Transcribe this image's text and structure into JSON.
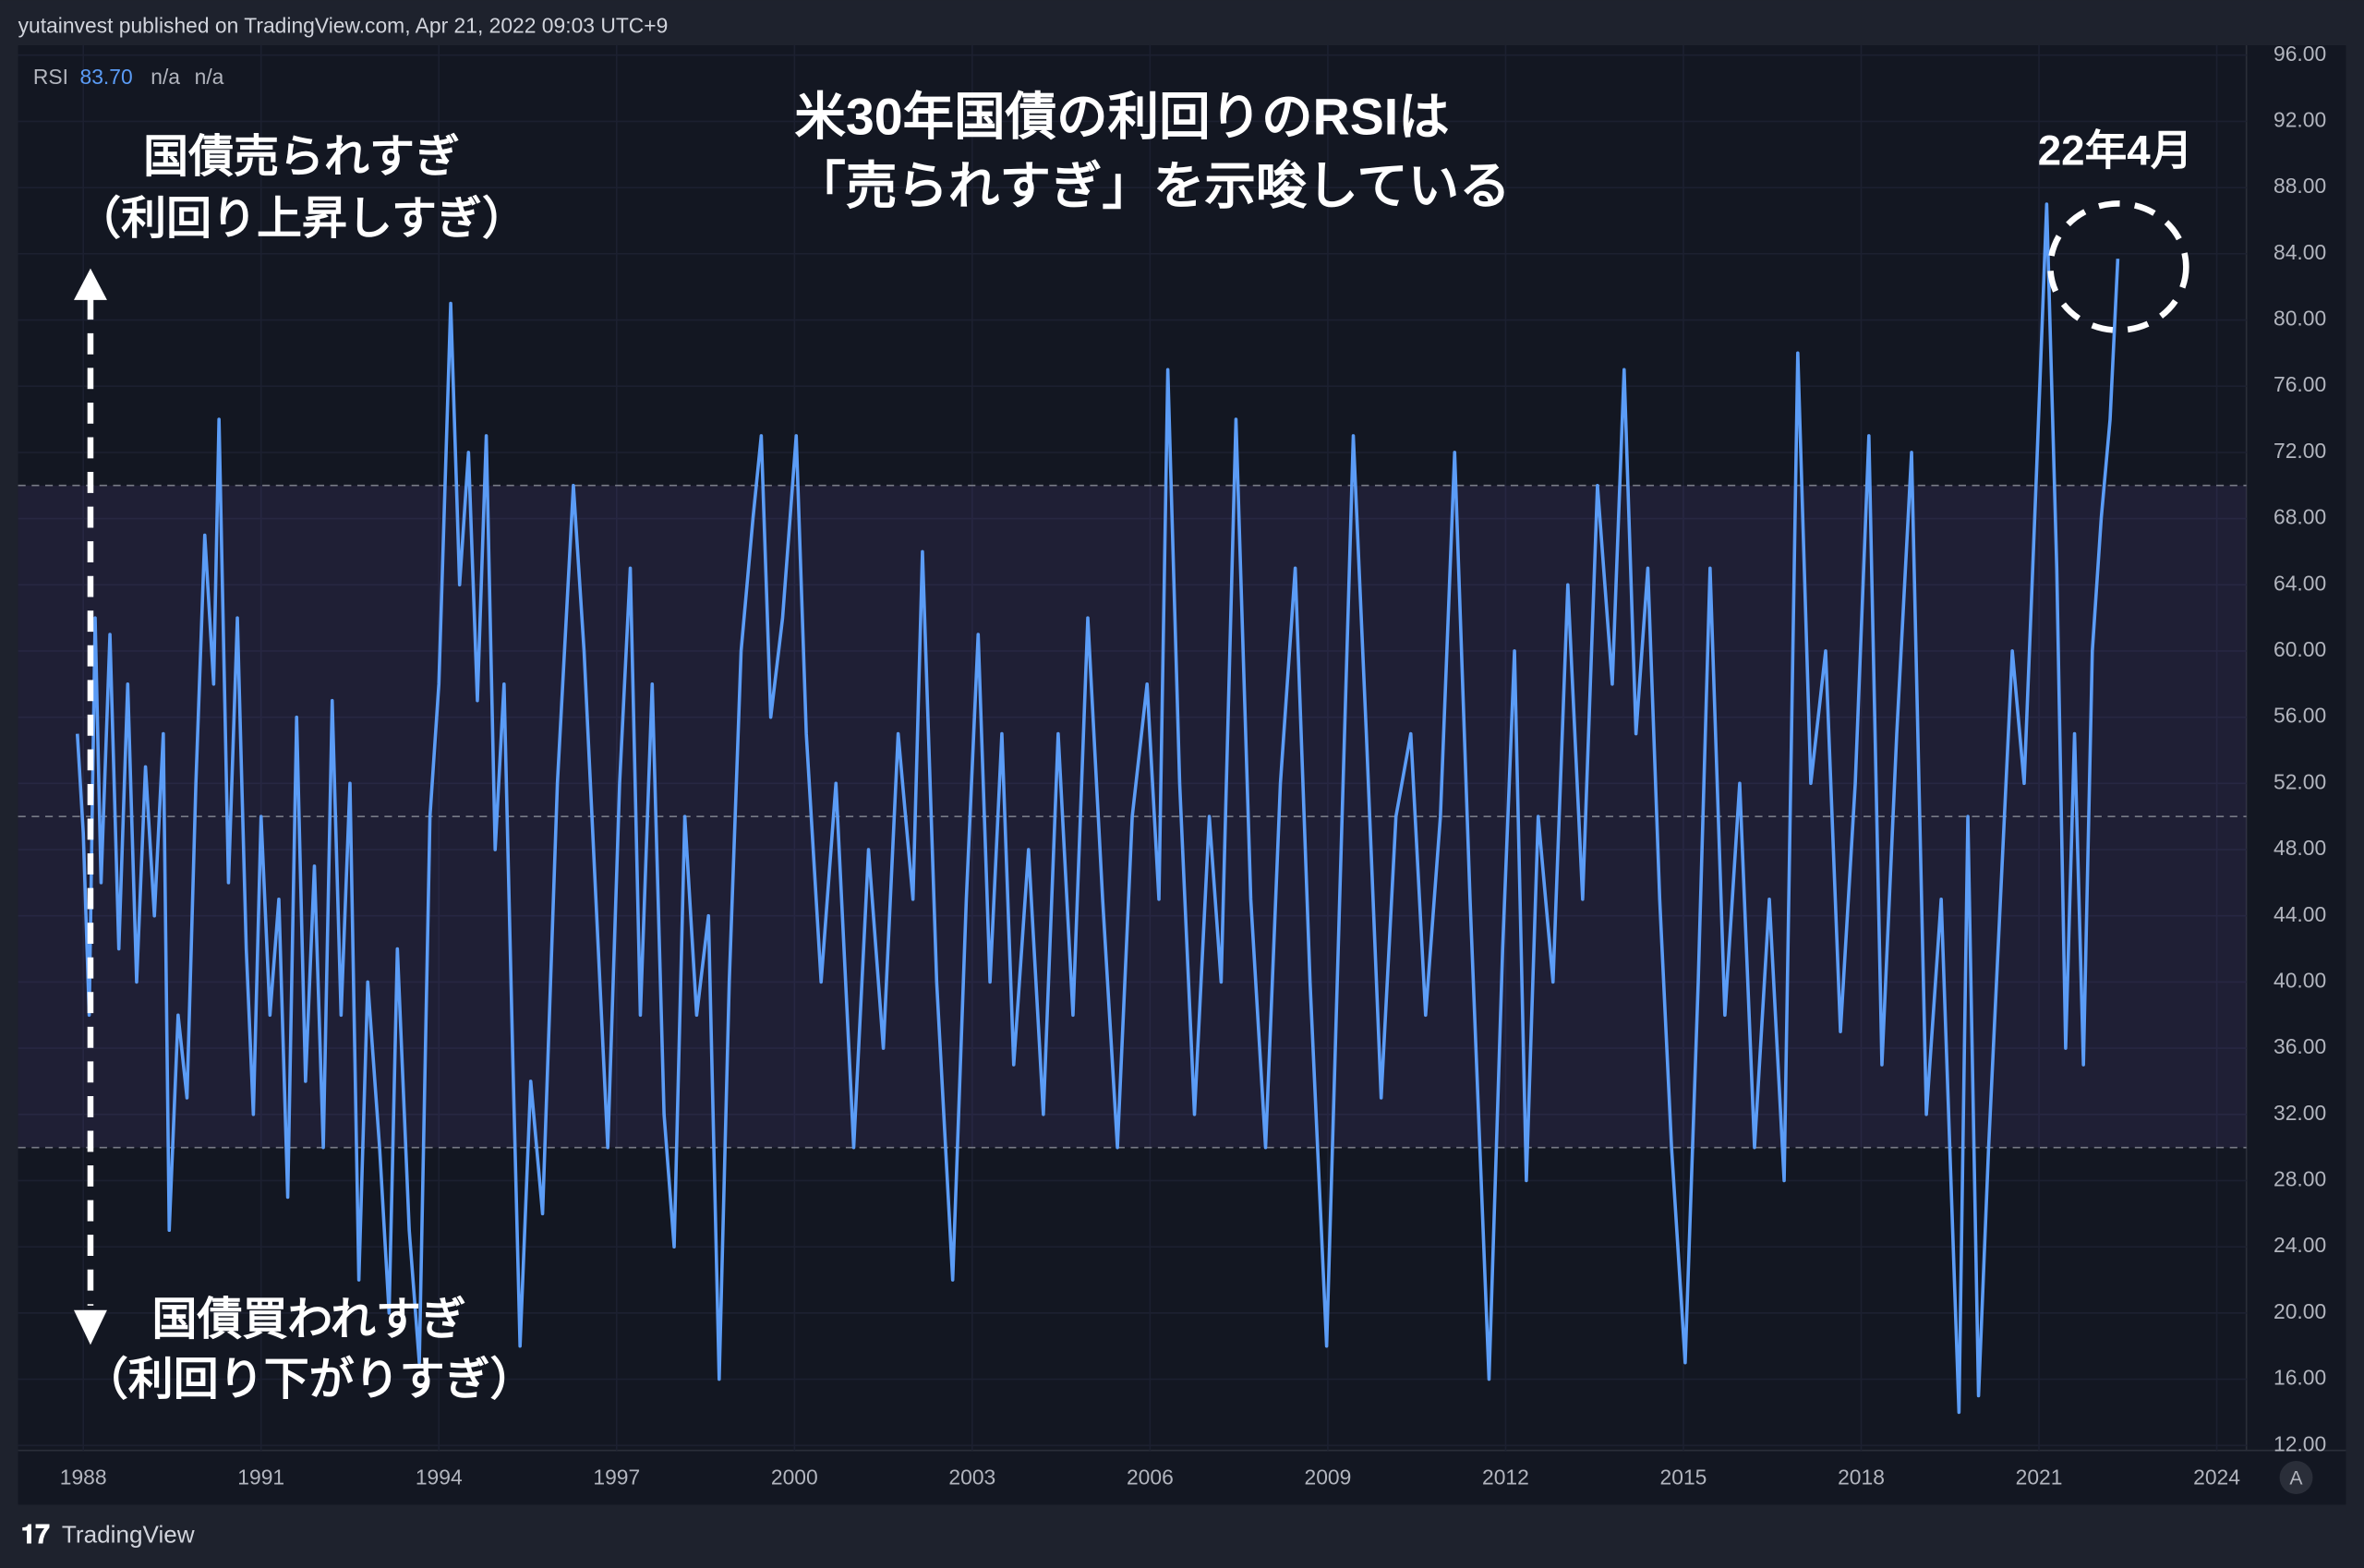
{
  "header": {
    "text": "yutainvest published on TradingView.com, Apr 21, 2022 09:03 UTC+9"
  },
  "footer": {
    "brand": "TradingView",
    "button": "A"
  },
  "chart_data": {
    "type": "line",
    "annotations": {
      "title_lines": [
        "米30年国債の利回りのRSIは",
        "「売られすぎ」を示唆している"
      ],
      "current": "22年4月",
      "top_lines": [
        "国債売られすぎ",
        "（利回り上昇しすぎ）"
      ],
      "bottom_lines": [
        "国債買われすぎ",
        "（利回り下がりすぎ）"
      ]
    },
    "legend_values": [
      "83.70",
      "n/a",
      "n/a"
    ],
    "x": [
      1987.9,
      1988.0,
      1988.1,
      1988.2,
      1988.3,
      1988.45,
      1988.6,
      1988.75,
      1988.9,
      1989.05,
      1989.2,
      1989.35,
      1989.45,
      1989.6,
      1989.75,
      1989.9,
      1990.05,
      1990.2,
      1990.29,
      1990.45,
      1990.6,
      1990.75,
      1990.87,
      1991.0,
      1991.15,
      1991.3,
      1991.45,
      1991.6,
      1991.75,
      1991.9,
      1992.05,
      1992.2,
      1992.35,
      1992.5,
      1992.65,
      1992.8,
      1993.0,
      1993.16,
      1993.3,
      1993.5,
      1993.67,
      1993.85,
      1994.0,
      1994.2,
      1994.35,
      1994.5,
      1994.65,
      1994.8,
      1994.95,
      1995.1,
      1995.25,
      1995.37,
      1995.55,
      1995.75,
      1996.0,
      1996.27,
      1996.45,
      1996.65,
      1996.85,
      1997.05,
      1997.23,
      1997.4,
      1997.6,
      1997.8,
      1997.97,
      1998.15,
      1998.35,
      1998.55,
      1998.73,
      1998.9,
      1999.1,
      1999.3,
      1999.44,
      1999.6,
      1999.8,
      2000.03,
      2000.2,
      2000.45,
      2000.7,
      2001.0,
      2001.25,
      2001.5,
      2001.75,
      2002.0,
      2002.16,
      2002.4,
      2002.67,
      2002.9,
      2003.1,
      2003.3,
      2003.5,
      2003.7,
      2003.95,
      2004.2,
      2004.45,
      2004.7,
      2004.95,
      2005.2,
      2005.45,
      2005.7,
      2005.95,
      2006.15,
      2006.3,
      2006.5,
      2006.75,
      2007.0,
      2007.2,
      2007.45,
      2007.7,
      2007.95,
      2008.2,
      2008.45,
      2008.7,
      2008.98,
      2009.2,
      2009.43,
      2009.65,
      2009.9,
      2010.15,
      2010.4,
      2010.65,
      2010.9,
      2011.14,
      2011.4,
      2011.72,
      2011.95,
      2012.15,
      2012.35,
      2012.55,
      2012.8,
      2013.05,
      2013.3,
      2013.55,
      2013.8,
      2014.0,
      2014.2,
      2014.4,
      2014.6,
      2014.8,
      2015.03,
      2015.25,
      2015.45,
      2015.7,
      2015.95,
      2016.2,
      2016.45,
      2016.7,
      2016.93,
      2017.15,
      2017.4,
      2017.65,
      2017.9,
      2018.13,
      2018.35,
      2018.6,
      2018.85,
      2019.1,
      2019.35,
      2019.65,
      2019.8,
      2019.98,
      2020.15,
      2020.35,
      2020.55,
      2020.75,
      2020.95,
      2021.13,
      2021.3,
      2021.45,
      2021.6,
      2021.75,
      2021.9,
      2022.05,
      2022.2,
      2022.33
    ],
    "series": [
      {
        "name": "RSI",
        "color": "#5b9cf6",
        "values": [
          55,
          49,
          38,
          62,
          46,
          61,
          42,
          58,
          40,
          53,
          44,
          55,
          25,
          38,
          33,
          52,
          67,
          58,
          74,
          46,
          62,
          42,
          32,
          50,
          38,
          45,
          27,
          56,
          34,
          47,
          30,
          57,
          38,
          52,
          22,
          40,
          30,
          20,
          42,
          25,
          17,
          50,
          58,
          81,
          64,
          72,
          57,
          73,
          48,
          58,
          35,
          18,
          34,
          26,
          52,
          70,
          60,
          45,
          30,
          52,
          65,
          38,
          58,
          32,
          24,
          50,
          38,
          44,
          16,
          40,
          60,
          68,
          73,
          56,
          62,
          73,
          55,
          40,
          52,
          30,
          48,
          36,
          55,
          45,
          66,
          40,
          22,
          45,
          61,
          40,
          55,
          35,
          48,
          32,
          55,
          38,
          62,
          45,
          30,
          50,
          58,
          45,
          77,
          52,
          32,
          50,
          40,
          74,
          45,
          30,
          52,
          65,
          40,
          18,
          45,
          73,
          55,
          33,
          50,
          55,
          38,
          50,
          72,
          45,
          16,
          42,
          60,
          28,
          50,
          40,
          64,
          45,
          70,
          58,
          77,
          55,
          65,
          45,
          30,
          17,
          40,
          65,
          38,
          52,
          30,
          45,
          28,
          78,
          52,
          60,
          37,
          52,
          73,
          35,
          55,
          72,
          32,
          45,
          14,
          50,
          15,
          30,
          45,
          60,
          52,
          70,
          87,
          65,
          36,
          55,
          35,
          60,
          68,
          74,
          83.7
        ]
      }
    ],
    "xlim": [
      1986.9,
      2024.5
    ],
    "ylim": [
      11.7,
      96.6
    ],
    "xticks": [
      1988,
      1991,
      1994,
      1997,
      2000,
      2003,
      2006,
      2009,
      2012,
      2015,
      2018,
      2021,
      2024
    ],
    "yticks": [
      {
        "value": 12,
        "label": "12.00"
      },
      {
        "value": 16,
        "label": "16.00"
      },
      {
        "value": 20,
        "label": "20.00"
      },
      {
        "value": 24,
        "label": "24.00"
      },
      {
        "value": 28,
        "label": "28.00"
      },
      {
        "value": 32,
        "label": "32.00"
      },
      {
        "value": 36,
        "label": "36.00"
      },
      {
        "value": 40,
        "label": "40.00"
      },
      {
        "value": 44,
        "label": "44.00"
      },
      {
        "value": 48,
        "label": "48.00"
      },
      {
        "value": 52,
        "label": "52.00"
      },
      {
        "value": 56,
        "label": "56.00"
      },
      {
        "value": 60,
        "label": "60.00"
      },
      {
        "value": 64,
        "label": "64.00"
      },
      {
        "value": 68,
        "label": "68.00"
      },
      {
        "value": 72,
        "label": "72.00"
      },
      {
        "value": 76,
        "label": "76.00"
      },
      {
        "value": 80,
        "label": "80.00"
      },
      {
        "value": 84,
        "label": "84.00"
      },
      {
        "value": 88,
        "label": "88.00"
      },
      {
        "value": 92,
        "label": "92.00"
      },
      {
        "value": 96,
        "label": "96.00"
      }
    ],
    "band": [
      30,
      70
    ],
    "midline": 50,
    "grid": true
  }
}
